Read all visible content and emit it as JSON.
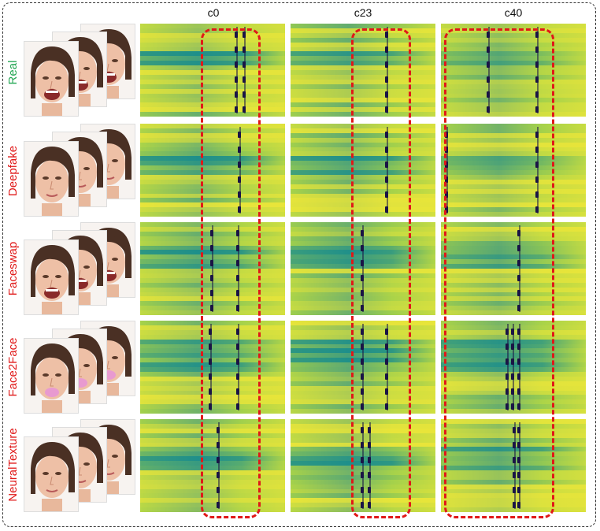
{
  "columns": [
    "c0",
    "c23",
    "c40"
  ],
  "rows": [
    {
      "label": "Real",
      "color": "#22a652"
    },
    {
      "label": "Deepfake",
      "color": "#e01818"
    },
    {
      "label": "Faceswap",
      "color": "#e01818"
    },
    {
      "label": "Face2Face",
      "color": "#e01818"
    },
    {
      "label": "NeuralTexture",
      "color": "#e01818"
    }
  ],
  "colors": {
    "heatmap_low": "#e8e53a",
    "heatmap_mid": "#a6d24a",
    "heatmap_high": "#1e8f8a",
    "heatmap_peak": "#1a1446",
    "highlight_box": "#e01818",
    "frame": "#333333"
  }
}
